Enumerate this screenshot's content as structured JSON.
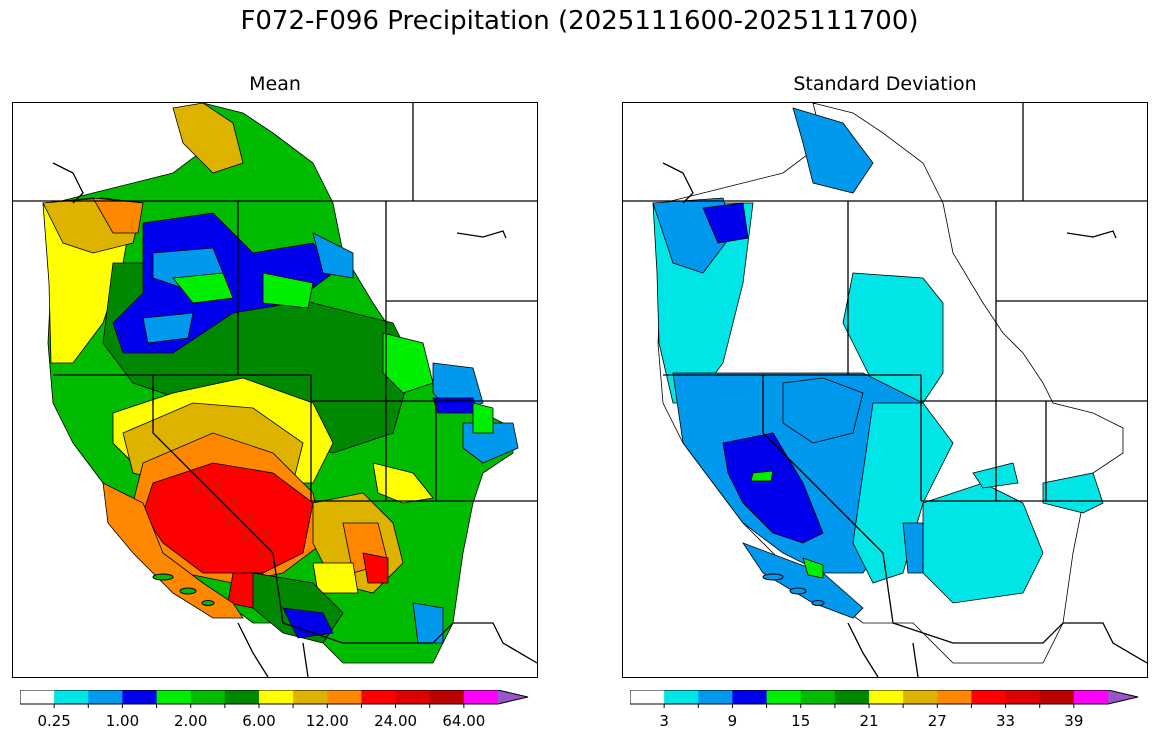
{
  "title": "F072-F096 Precipitation (2025111600-2025111700)",
  "panels": [
    {
      "id": "mean",
      "title": "Mean",
      "colorbar": {
        "colors": [
          "#ffffff",
          "#00e5e5",
          "#0099ee",
          "#0000ee",
          "#00ee00",
          "#00bb00",
          "#008800",
          "#ffff00",
          "#ddb300",
          "#ff8800",
          "#ff0000",
          "#dd0000",
          "#bb0000",
          "#ff00ff",
          "#9955cc"
        ],
        "tick_labels": [
          "0.25",
          "1.00",
          "2.00",
          "6.00",
          "12.00",
          "24.00",
          "64.00"
        ],
        "extend": "max"
      }
    },
    {
      "id": "stddev",
      "title": "Standard Deviation",
      "colorbar": {
        "colors": [
          "#ffffff",
          "#00e5e5",
          "#0099ee",
          "#0000ee",
          "#00ee00",
          "#00bb00",
          "#008800",
          "#ffff00",
          "#ddb300",
          "#ff8800",
          "#ff0000",
          "#dd0000",
          "#bb0000",
          "#ff00ff",
          "#9955cc"
        ],
        "tick_labels": [
          "3",
          "9",
          "15",
          "21",
          "27",
          "33",
          "39"
        ],
        "extend": "max"
      }
    }
  ]
}
